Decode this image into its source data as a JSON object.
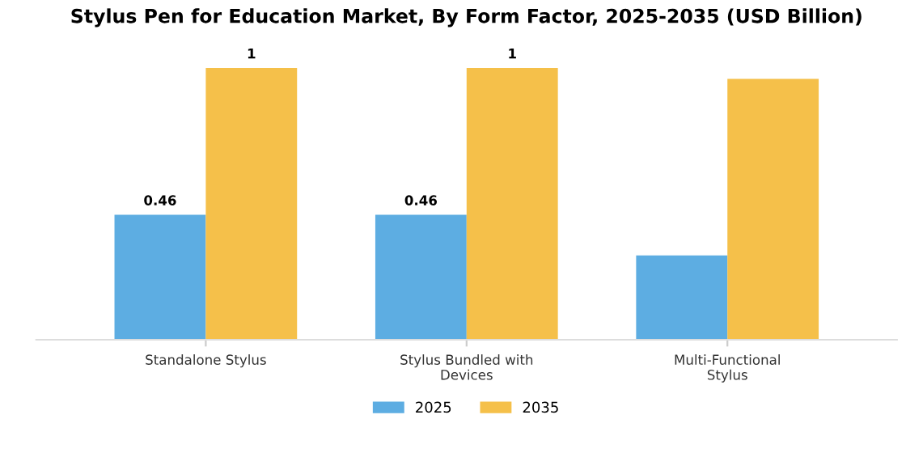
{
  "chart_data": {
    "type": "bar",
    "title": "Stylus Pen for Education Market, By Form Factor, 2025-2035 (USD Billion)",
    "categories": [
      "Standalone Stylus",
      "Stylus Bundled with\nDevices",
      "Multi-Functional\nStylus"
    ],
    "series": [
      {
        "name": "2025",
        "color": "#5dade2",
        "values": [
          0.46,
          0.46,
          0.31
        ],
        "value_labels": [
          "0.46",
          "0.46",
          null
        ]
      },
      {
        "name": "2035",
        "color": "#f5c04a",
        "values": [
          1,
          1,
          0.96
        ],
        "value_labels": [
          "1",
          "1",
          null
        ]
      }
    ],
    "tick_labels": "x",
    "legend": "bottom",
    "grid": false
  }
}
